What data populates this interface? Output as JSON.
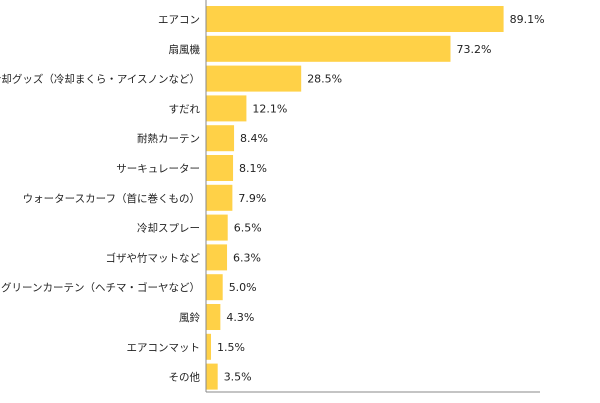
{
  "chart_data": {
    "type": "bar",
    "orientation": "horizontal",
    "categories": [
      "エアコン",
      "扇風機",
      "冷却グッズ（冷却まくら・アイスノンなど）",
      "すだれ",
      "耐熱カーテン",
      "サーキュレーター",
      "ウォータースカーフ（首に巻くもの）",
      "冷却スプレー",
      "ゴザや竹マットなど",
      "グリーンカーテン（ヘチマ・ゴーヤなど）",
      "風鈴",
      "エアコンマット",
      "その他"
    ],
    "values": [
      89.1,
      73.2,
      28.5,
      12.1,
      8.4,
      8.1,
      7.9,
      6.5,
      6.3,
      5.0,
      4.3,
      1.5,
      3.5
    ],
    "value_labels": [
      "89.1%",
      "73.2%",
      "28.5%",
      "12.1%",
      "8.4%",
      "8.1%",
      "7.9%",
      "6.5%",
      "6.3%",
      "5.0%",
      "4.3%",
      "1.5%",
      "3.5%"
    ],
    "xlim": [
      0,
      100
    ],
    "grid": false,
    "colors": {
      "bar": "#FFD147",
      "axis": "#888888",
      "text": "#222222"
    }
  }
}
